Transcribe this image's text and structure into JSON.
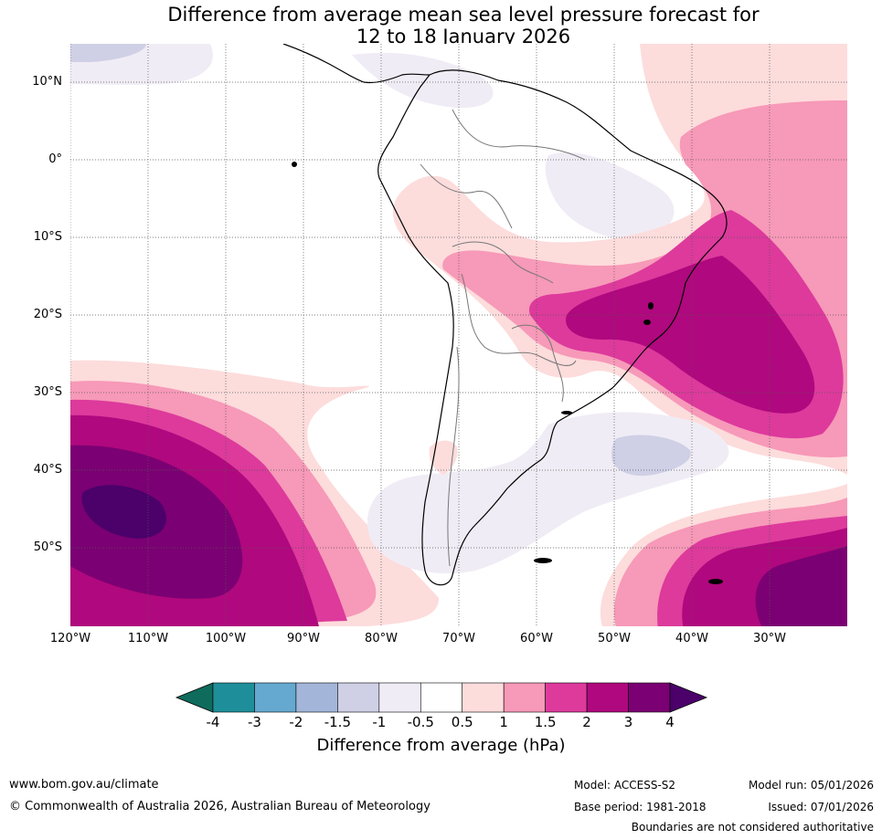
{
  "title": {
    "line1": "Difference from average mean sea level pressure forecast for",
    "line2": "12 to 18 January 2026"
  },
  "axes": {
    "lat_labels": [
      "10°N",
      "0°",
      "10°S",
      "20°S",
      "30°S",
      "40°S",
      "50°S"
    ],
    "lon_labels": [
      "120°W",
      "110°W",
      "100°W",
      "90°W",
      "80°W",
      "70°W",
      "60°W",
      "50°W",
      "40°W",
      "30°W"
    ]
  },
  "colorbar": {
    "ticks": [
      "-4",
      "-3",
      "-2",
      "-1.5",
      "-1",
      "-0.5",
      "0.5",
      "1",
      "1.5",
      "2",
      "3",
      "4"
    ],
    "colors": [
      "#0f6b5c",
      "#1e8f9a",
      "#65a9d0",
      "#a3b6d9",
      "#cfd0e6",
      "#f0ecf5",
      "#ffffff",
      "#fddcdc",
      "#f799b8",
      "#dd3a9c",
      "#b0087e",
      "#7b0073",
      "#4b006a"
    ],
    "label": "Difference from average (hPa)"
  },
  "footer": {
    "website": "www.bom.gov.au/climate",
    "copyright": "© Commonwealth of Australia 2026, Australian Bureau of Meteorology",
    "model": "Model: ACCESS-S2",
    "model_run": "Model run: 05/01/2026",
    "base_period": "Base period: 1981-2018",
    "issued": "Issued: 07/01/2026",
    "disclaimer": "Boundaries are not considered authoritative"
  }
}
